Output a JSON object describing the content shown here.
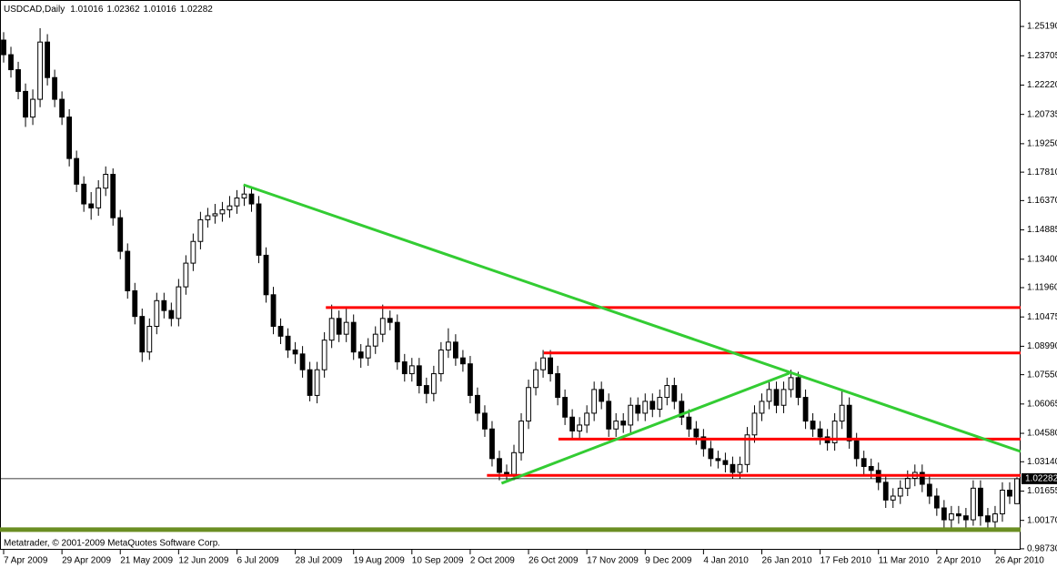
{
  "chart_data": {
    "type": "candlestick",
    "title": "USDCAD,Daily",
    "footer": "Metatrader, © 2001-2009 MetaQuotes Software Corp.",
    "categories": [
      "7 Apr 2009",
      null,
      null,
      null,
      null,
      null,
      null,
      null,
      "29 Apr 2009",
      null,
      null,
      null,
      null,
      null,
      null,
      null,
      "21 May 2009",
      null,
      null,
      null,
      null,
      null,
      null,
      null,
      "12 Jun 2009",
      null,
      null,
      null,
      null,
      null,
      null,
      null,
      "6 Jul 2009",
      null,
      null,
      null,
      null,
      null,
      null,
      null,
      "28 Jul 2009",
      null,
      null,
      null,
      null,
      null,
      null,
      null,
      "19 Aug 2009",
      null,
      null,
      null,
      null,
      null,
      null,
      null,
      "10 Sep 2009",
      null,
      null,
      null,
      null,
      null,
      null,
      null,
      "2 Oct 2009",
      null,
      null,
      null,
      null,
      null,
      null,
      null,
      "26 Oct 2009",
      null,
      null,
      null,
      null,
      null,
      null,
      null,
      "17 Nov 2009",
      null,
      null,
      null,
      null,
      null,
      null,
      null,
      "9 Dec 2009",
      null,
      null,
      null,
      null,
      null,
      null,
      null,
      "4 Jan 2010",
      null,
      null,
      null,
      null,
      null,
      null,
      null,
      "26 Jan 2010",
      null,
      null,
      null,
      null,
      null,
      null,
      null,
      "17 Feb 2010",
      null,
      null,
      null,
      null,
      null,
      null,
      null,
      "11 Mar 2010",
      null,
      null,
      null,
      null,
      null,
      null,
      null,
      "2 Apr 2010",
      null,
      null,
      null,
      null,
      null,
      null,
      null,
      "26 Apr 2010",
      null,
      null,
      null
    ],
    "open": [
      1.245,
      1.2376,
      1.23,
      1.219,
      1.206,
      1.215,
      1.244,
      1.226,
      1.215,
      1.206,
      1.185,
      1.172,
      1.162,
      1.16,
      1.17,
      1.177,
      1.155,
      1.138,
      1.118,
      1.105,
      1.087,
      1.1,
      1.113,
      1.108,
      1.104,
      1.12,
      1.132,
      1.143,
      1.154,
      1.156,
      1.157,
      1.159,
      1.161,
      1.165,
      1.167,
      1.162,
      1.136,
      1.116,
      1.1,
      1.095,
      1.088,
      1.086,
      1.078,
      1.065,
      1.078,
      1.093,
      1.104,
      1.096,
      1.102,
      1.087,
      1.084,
      1.09,
      1.096,
      1.104,
      1.102,
      1.082,
      1.076,
      1.08,
      1.07,
      1.066,
      1.076,
      1.088,
      1.092,
      1.084,
      1.081,
      1.065,
      1.056,
      1.048,
      1.033,
      1.026,
      1.025,
      1.036,
      1.052,
      1.069,
      1.078,
      1.084,
      1.076,
      1.064,
      1.054,
      1.047,
      1.05,
      1.056,
      1.068,
      1.062,
      1.048,
      1.052,
      1.05,
      1.06,
      1.056,
      1.062,
      1.058,
      1.064,
      1.07,
      1.062,
      1.054,
      1.048,
      1.044,
      1.038,
      1.033,
      1.032,
      1.03,
      1.026,
      1.03,
      1.045,
      1.056,
      1.062,
      1.068,
      1.06,
      1.068,
      1.074,
      1.064,
      1.052,
      1.048,
      1.044,
      1.041,
      1.052,
      1.06,
      1.042,
      1.033,
      1.029,
      1.027,
      1.021,
      1.012,
      1.014,
      1.018,
      1.023,
      1.026,
      1.02,
      1.014,
      1.008,
      1.002,
      1.005,
      1.004,
      1.002,
      1.018,
      1.004,
      1.001,
      1.005,
      1.017,
      1.01016
    ],
    "high": [
      1.249,
      1.2416,
      1.234,
      1.223,
      1.22,
      1.251,
      1.248,
      1.23,
      1.219,
      1.21,
      1.189,
      1.176,
      1.168,
      1.174,
      1.181,
      1.18,
      1.159,
      1.142,
      1.122,
      1.109,
      1.104,
      1.117,
      1.117,
      1.112,
      1.124,
      1.136,
      1.147,
      1.158,
      1.16,
      1.162,
      1.163,
      1.166,
      1.169,
      1.172,
      1.171,
      1.166,
      1.14,
      1.12,
      1.104,
      1.099,
      1.092,
      1.09,
      1.082,
      1.082,
      1.097,
      1.111,
      1.108,
      1.11,
      1.106,
      1.091,
      1.094,
      1.1,
      1.111,
      1.108,
      1.106,
      1.086,
      1.084,
      1.084,
      1.074,
      1.08,
      1.092,
      1.099,
      1.096,
      1.088,
      1.085,
      1.069,
      1.06,
      1.052,
      1.037,
      1.03,
      1.04,
      1.056,
      1.073,
      1.082,
      1.088,
      1.088,
      1.08,
      1.068,
      1.058,
      1.054,
      1.06,
      1.072,
      1.072,
      1.066,
      1.056,
      1.056,
      1.064,
      1.064,
      1.066,
      1.066,
      1.068,
      1.074,
      1.074,
      1.066,
      1.058,
      1.052,
      1.048,
      1.042,
      1.037,
      1.036,
      1.034,
      1.034,
      1.049,
      1.06,
      1.066,
      1.072,
      1.072,
      1.072,
      1.078,
      1.077,
      1.068,
      1.056,
      1.052,
      1.048,
      1.056,
      1.068,
      1.064,
      1.046,
      1.037,
      1.033,
      1.031,
      1.025,
      1.018,
      1.022,
      1.027,
      1.03,
      1.03,
      1.024,
      1.018,
      1.012,
      1.009,
      1.009,
      1.008,
      1.022,
      1.022,
      1.008,
      1.009,
      1.021,
      1.021,
      1.02362
    ],
    "low": [
      1.2336,
      1.226,
      1.215,
      1.201,
      1.202,
      1.211,
      1.222,
      1.211,
      1.202,
      1.181,
      1.168,
      1.158,
      1.154,
      1.156,
      1.166,
      1.151,
      1.134,
      1.114,
      1.101,
      1.082,
      1.083,
      1.096,
      1.104,
      1.1,
      1.1,
      1.116,
      1.128,
      1.139,
      1.15,
      1.152,
      1.153,
      1.155,
      1.157,
      1.161,
      1.158,
      1.132,
      1.112,
      1.096,
      1.091,
      1.084,
      1.081,
      1.074,
      1.062,
      1.061,
      1.074,
      1.089,
      1.092,
      1.092,
      1.083,
      1.079,
      1.08,
      1.086,
      1.092,
      1.098,
      1.078,
      1.072,
      1.072,
      1.066,
      1.061,
      1.062,
      1.072,
      1.084,
      1.08,
      1.077,
      1.061,
      1.052,
      1.044,
      1.029,
      1.022,
      1.021,
      1.022,
      1.032,
      1.048,
      1.065,
      1.074,
      1.072,
      1.06,
      1.05,
      1.043,
      1.043,
      1.046,
      1.052,
      1.058,
      1.044,
      1.044,
      1.046,
      1.046,
      1.052,
      1.052,
      1.054,
      1.054,
      1.06,
      1.058,
      1.05,
      1.044,
      1.04,
      1.034,
      1.029,
      1.028,
      1.026,
      1.023,
      1.023,
      1.026,
      1.041,
      1.052,
      1.058,
      1.056,
      1.056,
      1.064,
      1.06,
      1.048,
      1.044,
      1.04,
      1.037,
      1.037,
      1.048,
      1.038,
      1.029,
      1.025,
      1.023,
      1.017,
      1.008,
      1.008,
      1.01,
      1.014,
      1.019,
      1.016,
      1.01,
      1.004,
      0.998,
      0.998,
      1.0,
      0.998,
      0.999,
      0.999,
      0.997,
      0.998,
      1.001,
      1.01,
      1.01016
    ],
    "close": [
      1.2376,
      1.23,
      1.219,
      1.206,
      1.215,
      1.244,
      1.226,
      1.215,
      1.206,
      1.185,
      1.172,
      1.162,
      1.16,
      1.17,
      1.177,
      1.155,
      1.138,
      1.118,
      1.105,
      1.087,
      1.1,
      1.113,
      1.108,
      1.104,
      1.12,
      1.132,
      1.143,
      1.154,
      1.156,
      1.157,
      1.159,
      1.161,
      1.165,
      1.167,
      1.162,
      1.136,
      1.116,
      1.1,
      1.095,
      1.088,
      1.086,
      1.078,
      1.065,
      1.078,
      1.093,
      1.104,
      1.096,
      1.102,
      1.087,
      1.084,
      1.09,
      1.096,
      1.104,
      1.102,
      1.082,
      1.076,
      1.08,
      1.07,
      1.066,
      1.076,
      1.088,
      1.092,
      1.084,
      1.081,
      1.065,
      1.056,
      1.048,
      1.033,
      1.026,
      1.025,
      1.036,
      1.052,
      1.069,
      1.078,
      1.084,
      1.076,
      1.064,
      1.054,
      1.047,
      1.05,
      1.056,
      1.068,
      1.062,
      1.048,
      1.052,
      1.05,
      1.06,
      1.056,
      1.062,
      1.058,
      1.064,
      1.07,
      1.062,
      1.054,
      1.048,
      1.044,
      1.038,
      1.033,
      1.032,
      1.03,
      1.026,
      1.03,
      1.045,
      1.056,
      1.062,
      1.068,
      1.06,
      1.068,
      1.074,
      1.064,
      1.052,
      1.048,
      1.044,
      1.041,
      1.052,
      1.06,
      1.042,
      1.033,
      1.029,
      1.027,
      1.021,
      1.012,
      1.014,
      1.018,
      1.023,
      1.026,
      1.02,
      1.014,
      1.008,
      1.002,
      1.005,
      1.004,
      1.002,
      1.018,
      1.004,
      1.001,
      1.005,
      1.017,
      1.014,
      1.02282
    ],
    "ylim": [
      0.9868,
      1.2653
    ],
    "yticks": [
      {
        "value": 1.2519,
        "label": "1.25190"
      },
      1.23705,
      {
        "value": 1.2222,
        "label": "1.22220"
      },
      1.20735,
      {
        "value": 1.1925,
        "label": "1.19250"
      },
      {
        "value": 1.1781,
        "label": "1.17810"
      },
      {
        "value": 1.1637,
        "label": "1.16370"
      },
      1.14885,
      {
        "value": 1.134,
        "label": "1.13400"
      },
      {
        "value": 1.1196,
        "label": "1.11960"
      },
      1.10475,
      {
        "value": 1.0899,
        "label": "1.08990"
      },
      {
        "value": 1.0755,
        "label": "1.07550"
      },
      1.06065,
      {
        "value": 1.0458,
        "label": "1.04580"
      },
      {
        "value": 1.0314,
        "label": "1.03140"
      },
      1.01655,
      {
        "value": 1.0017,
        "label": "1.00170"
      },
      {
        "value": 0.9873,
        "label": "0.98730"
      }
    ],
    "bull_color": "#ffffff",
    "bear_color": "#000000",
    "levels": [
      {
        "value": 1.1095,
        "start": 44.2,
        "color": "#ff0000"
      },
      {
        "value": 1.0865,
        "start": 74.1,
        "color": "#ff0000"
      },
      {
        "value": 1.0429,
        "start": 76.1,
        "color": "#ff0000"
      },
      {
        "value": 1.0245,
        "start": 66.3,
        "color": "#ff0000"
      },
      {
        "value": 0.997,
        "start": -0.5,
        "color": "#6b8e23"
      }
    ],
    "trendlines": [
      {
        "x": [
          32.9,
          139.5
        ],
        "y": [
          1.1717,
          1.0366
        ],
        "color": "#33cc33"
      },
      {
        "x": [
          68.3,
          107.8
        ],
        "y": [
          1.0205,
          1.0763
        ],
        "color": "#33cc33"
      }
    ]
  }
}
